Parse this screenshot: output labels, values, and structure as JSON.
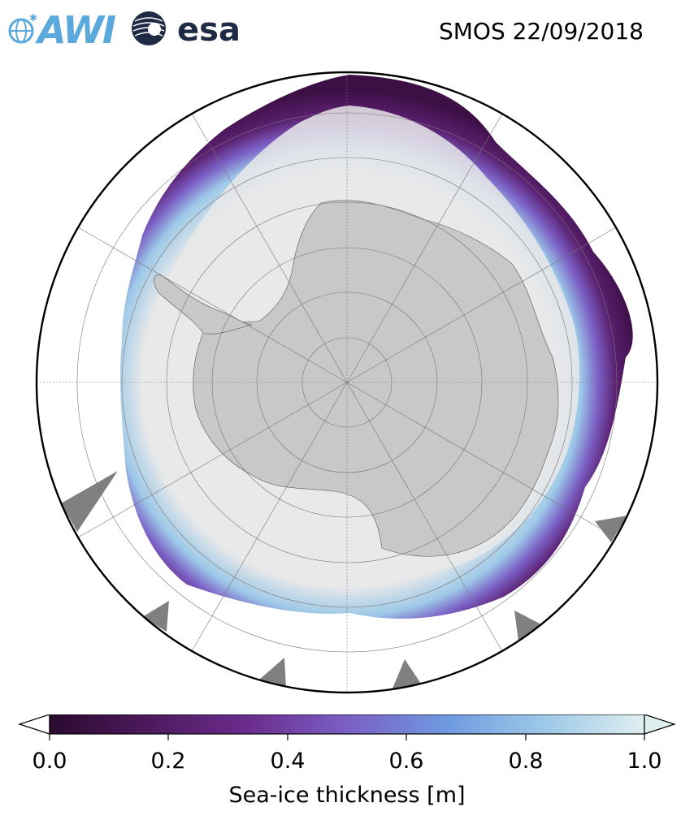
{
  "header": {
    "logo_awi": "AWI",
    "logo_esa": "esa",
    "title": "SMOS 22/09/2018"
  },
  "colors": {
    "land": "#c8c8c8",
    "open_water": "#ffffff",
    "thick_ice": "#e9e9e9",
    "missing": "#808080",
    "graticule": "#777777"
  },
  "colorbar": {
    "label": "Sea-ice thickness [m]",
    "min": 0.0,
    "max": 1.0,
    "ticks": [
      "0.0",
      "0.2",
      "0.4",
      "0.6",
      "0.8",
      "1.0"
    ],
    "colormap": [
      "#2b0a2f",
      "#4e1a5e",
      "#6a2c8c",
      "#7b5fc4",
      "#6f9ae0",
      "#9cc8e8",
      "#dfeeef"
    ],
    "extend": "both"
  }
}
